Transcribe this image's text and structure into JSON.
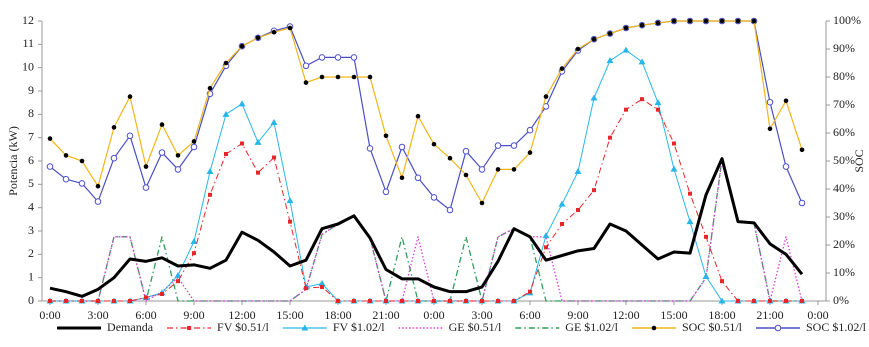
{
  "chart_data": {
    "type": "line",
    "y_label": "Potencia (kW)",
    "y2_label": "SOC",
    "x": [
      0,
      1,
      2,
      3,
      4,
      5,
      6,
      7,
      8,
      9,
      10,
      11,
      12,
      13,
      14,
      15,
      16,
      17,
      18,
      19,
      20,
      21,
      22,
      23,
      24,
      25,
      26,
      27,
      28,
      29,
      30,
      31,
      32,
      33,
      34,
      35,
      36,
      37,
      38,
      39,
      40,
      41,
      42,
      43,
      44,
      45,
      46,
      47
    ],
    "xlim": [
      -0.5,
      48.5
    ],
    "xticks": [
      {
        "value": 0,
        "label": "0:00"
      },
      {
        "value": 3,
        "label": "3:00"
      },
      {
        "value": 6,
        "label": "6:00"
      },
      {
        "value": 9,
        "label": "9:00"
      },
      {
        "value": 12,
        "label": "12:00"
      },
      {
        "value": 15,
        "label": "15:00"
      },
      {
        "value": 18,
        "label": "18:00"
      },
      {
        "value": 21,
        "label": "21:00"
      },
      {
        "value": 24,
        "label": "0:00"
      },
      {
        "value": 27,
        "label": "3:00"
      },
      {
        "value": 30,
        "label": "6:00"
      },
      {
        "value": 33,
        "label": "9:00"
      },
      {
        "value": 36,
        "label": "12:00"
      },
      {
        "value": 39,
        "label": "15:00"
      },
      {
        "value": 42,
        "label": "18:00"
      },
      {
        "value": 45,
        "label": "21:00"
      },
      {
        "value": 48,
        "label": "0:00"
      }
    ],
    "ylim": [
      0,
      12
    ],
    "yticks": [
      0,
      1,
      2,
      3,
      4,
      5,
      6,
      7,
      8,
      9,
      10,
      11,
      12
    ],
    "y2lim": [
      0,
      100
    ],
    "y2ticks": [
      {
        "value": 0,
        "label": "0%"
      },
      {
        "value": 10,
        "label": "10%"
      },
      {
        "value": 20,
        "label": "20%"
      },
      {
        "value": 30,
        "label": "30%"
      },
      {
        "value": 40,
        "label": "40%"
      },
      {
        "value": 50,
        "label": "50%"
      },
      {
        "value": 60,
        "label": "60%"
      },
      {
        "value": 70,
        "label": "70%"
      },
      {
        "value": 80,
        "label": "80%"
      },
      {
        "value": 90,
        "label": "90%"
      },
      {
        "value": 100,
        "label": "100%"
      }
    ],
    "legend": "bottom",
    "series": [
      {
        "name": "Demanda",
        "color": "#000000",
        "line_style": "solid",
        "line_width": 3,
        "marker": "none",
        "values": [
          0.55,
          0.4,
          0.2,
          0.5,
          1.0,
          1.8,
          1.7,
          1.85,
          1.5,
          1.55,
          1.4,
          1.75,
          2.95,
          2.6,
          2.1,
          1.5,
          1.75,
          3.1,
          3.3,
          3.65,
          2.7,
          1.35,
          0.95,
          0.95,
          0.6,
          0.4,
          0.4,
          0.6,
          1.7,
          3.1,
          2.75,
          1.75,
          1.95,
          2.15,
          2.25,
          3.3,
          3.0,
          2.4,
          1.8,
          2.1,
          2.05,
          4.55,
          6.1,
          3.4,
          3.35,
          2.45,
          2.0,
          1.15
        ]
      },
      {
        "name": "FV $0.51/l",
        "color": "#e8262a",
        "line_style": "dashdot",
        "line_width": 1,
        "marker": "square",
        "values": [
          0,
          0,
          0,
          0,
          0,
          0,
          0.15,
          0.3,
          0.85,
          2.05,
          4.55,
          6.3,
          6.75,
          5.5,
          6.15,
          3.4,
          0.55,
          0.6,
          0,
          0,
          0,
          0,
          0,
          0,
          0,
          0,
          0,
          0,
          0,
          0,
          0.4,
          2.3,
          3.3,
          3.9,
          4.75,
          7.0,
          8.2,
          8.65,
          8.2,
          6.75,
          4.6,
          2.75,
          0.85,
          0,
          0,
          0,
          0,
          0
        ]
      },
      {
        "name": "FV $1.02/l",
        "color": "#29b6e6",
        "line_style": "solid",
        "line_width": 1,
        "marker": "triangle",
        "values": [
          0,
          0,
          0,
          0,
          0,
          0,
          0.15,
          0.35,
          1.1,
          2.55,
          5.55,
          8.0,
          8.45,
          6.8,
          7.65,
          4.3,
          0.6,
          0.75,
          0,
          0,
          0,
          0,
          0,
          0,
          0,
          0,
          0,
          0,
          0,
          0,
          0.35,
          2.8,
          4.15,
          5.55,
          8.7,
          10.3,
          10.75,
          10.25,
          8.5,
          5.65,
          3.4,
          1.05,
          0,
          0,
          0,
          0,
          0,
          0
        ]
      },
      {
        "name": "GE $0.51/l",
        "color": "#d63fd6",
        "line_style": "dotted",
        "line_width": 1.3,
        "marker": "none",
        "values": [
          0,
          0,
          0,
          0,
          2.75,
          2.75,
          0,
          0.4,
          1.0,
          0,
          0,
          0,
          0,
          0,
          0,
          0,
          0.5,
          2.85,
          3.3,
          3.65,
          2.7,
          0,
          0,
          2.75,
          0,
          0,
          0,
          0,
          2.75,
          3.1,
          2.75,
          2.75,
          0,
          0,
          0,
          0,
          0,
          0,
          0,
          0,
          0,
          1.0,
          6.1,
          3.4,
          3.35,
          0,
          2.75,
          0
        ]
      },
      {
        "name": "GE $1.02/l",
        "color": "#2e9e5b",
        "line_style": "dashdot",
        "line_width": 1.3,
        "marker": "none",
        "values": [
          0,
          0,
          0,
          0,
          2.75,
          2.75,
          0,
          2.75,
          0,
          0,
          0,
          0,
          0,
          0,
          0,
          0,
          0.5,
          2.85,
          3.3,
          3.65,
          2.7,
          0,
          2.75,
          0,
          0,
          0,
          2.75,
          0,
          2.75,
          3.1,
          2.75,
          0,
          0,
          0,
          0,
          0,
          0,
          0,
          0,
          0,
          0,
          1.0,
          6.1,
          3.4,
          3.35,
          0,
          0,
          0
        ]
      },
      {
        "name": "SOC $0.51/l",
        "color": "#f2b619",
        "marker_color": "#000000",
        "line_style": "solid",
        "line_width": 1.2,
        "marker": "dot",
        "axis": "y2",
        "values": [
          58,
          52,
          50,
          41,
          62,
          73,
          48,
          63,
          52,
          57,
          76,
          85,
          91,
          94,
          96,
          97.5,
          78,
          80,
          80,
          80,
          80,
          59,
          44,
          66,
          56,
          51,
          45,
          35,
          47,
          47,
          53,
          73,
          83,
          90,
          93.5,
          95.5,
          97.5,
          98.5,
          99.3,
          100,
          100,
          100,
          100,
          100,
          100,
          61.5,
          71.5,
          54
        ]
      },
      {
        "name": "SOC $1.02/l",
        "color": "#4a4fc4",
        "marker_color": "#4a4fc4",
        "line_style": "solid",
        "line_width": 1.2,
        "marker": "circle",
        "axis": "y2",
        "values": [
          48,
          43.5,
          42,
          35.5,
          51,
          59,
          40.5,
          53,
          47,
          55,
          74,
          84,
          91,
          94,
          96.5,
          98,
          84,
          87,
          87,
          87,
          54.5,
          39,
          55,
          44,
          37,
          32.5,
          53.5,
          47,
          55.5,
          55.5,
          61,
          69.5,
          82,
          89.5,
          93.5,
          95.5,
          97.5,
          98.5,
          99.3,
          100,
          100,
          100,
          100,
          100,
          100,
          71,
          48,
          35
        ]
      }
    ]
  }
}
